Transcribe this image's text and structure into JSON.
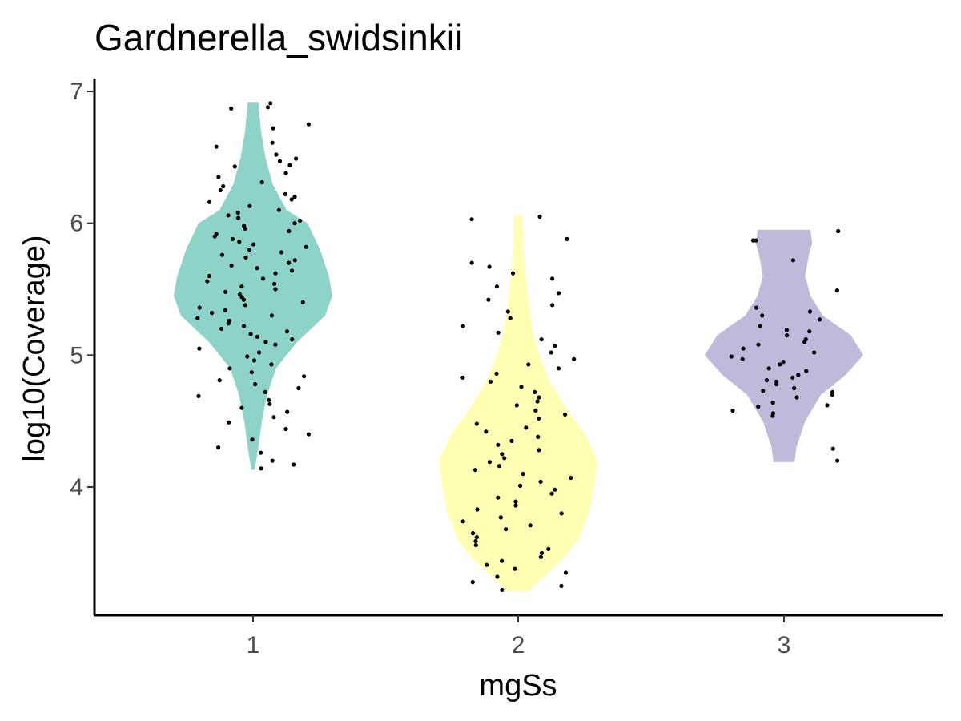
{
  "chart_data": {
    "type": "violin",
    "title": "Gardnerella_swidsinkii",
    "xlabel": "mgSs",
    "ylabel": "log10(Coverage)",
    "categories": [
      "1",
      "2",
      "3"
    ],
    "yticks": [
      4,
      5,
      6,
      7
    ],
    "ylim": [
      3.1,
      7.1
    ],
    "grid": false,
    "legend": "none",
    "violins": [
      {
        "category": "1",
        "color": "#8dd3c7",
        "min": 4.13,
        "max": 6.92,
        "density": [
          [
            4.13,
            0.02
          ],
          [
            4.3,
            0.06
          ],
          [
            4.5,
            0.1
          ],
          [
            4.7,
            0.16
          ],
          [
            4.9,
            0.26
          ],
          [
            5.1,
            0.5
          ],
          [
            5.3,
            0.82
          ],
          [
            5.45,
            0.9
          ],
          [
            5.6,
            0.86
          ],
          [
            5.8,
            0.76
          ],
          [
            6.0,
            0.62
          ],
          [
            6.1,
            0.38
          ],
          [
            6.3,
            0.22
          ],
          [
            6.5,
            0.14
          ],
          [
            6.7,
            0.09
          ],
          [
            6.92,
            0.06
          ]
        ]
      },
      {
        "category": "2",
        "color": "#ffffb3",
        "min": 3.21,
        "max": 6.06,
        "density": [
          [
            3.21,
            0.12
          ],
          [
            3.3,
            0.26
          ],
          [
            3.45,
            0.5
          ],
          [
            3.6,
            0.68
          ],
          [
            3.8,
            0.8
          ],
          [
            4.0,
            0.86
          ],
          [
            4.2,
            0.9
          ],
          [
            4.4,
            0.76
          ],
          [
            4.6,
            0.54
          ],
          [
            4.8,
            0.36
          ],
          [
            5.0,
            0.24
          ],
          [
            5.2,
            0.16
          ],
          [
            5.5,
            0.1
          ],
          [
            5.8,
            0.06
          ],
          [
            6.06,
            0.05
          ]
        ]
      },
      {
        "category": "3",
        "color": "#bebada",
        "min": 4.19,
        "max": 5.95,
        "density": [
          [
            4.19,
            0.12
          ],
          [
            4.3,
            0.14
          ],
          [
            4.5,
            0.24
          ],
          [
            4.7,
            0.42
          ],
          [
            4.85,
            0.7
          ],
          [
            5.0,
            0.9
          ],
          [
            5.15,
            0.76
          ],
          [
            5.3,
            0.44
          ],
          [
            5.45,
            0.3
          ],
          [
            5.6,
            0.24
          ],
          [
            5.75,
            0.28
          ],
          [
            5.85,
            0.32
          ],
          [
            5.95,
            0.3
          ]
        ]
      }
    ],
    "points": [
      {
        "category": "1",
        "y": [
          6.91,
          6.87,
          6.88,
          6.75,
          6.72,
          6.61,
          6.58,
          6.49,
          6.52,
          6.44,
          6.47,
          6.43,
          6.38,
          6.35,
          6.31,
          6.28,
          6.25,
          6.22,
          6.2,
          6.18,
          6.16,
          6.13,
          6.1,
          6.08,
          6.06,
          6.04,
          6.02,
          6.0,
          5.98,
          5.96,
          5.94,
          5.92,
          5.9,
          5.88,
          5.86,
          5.84,
          5.82,
          5.8,
          5.78,
          5.76,
          5.74,
          5.72,
          5.7,
          5.68,
          5.66,
          5.64,
          5.62,
          5.6,
          5.58,
          5.56,
          5.54,
          5.52,
          5.5,
          5.48,
          5.46,
          5.44,
          5.42,
          5.4,
          5.38,
          5.36,
          5.34,
          5.32,
          5.3,
          5.28,
          5.26,
          5.24,
          5.22,
          5.2,
          5.18,
          5.16,
          5.14,
          5.12,
          5.1,
          5.08,
          5.05,
          5.02,
          4.99,
          4.96,
          4.93,
          4.9,
          4.87,
          4.84,
          4.81,
          4.78,
          4.75,
          4.72,
          4.69,
          4.66,
          4.63,
          4.6,
          4.57,
          4.53,
          4.49,
          4.44,
          4.4,
          4.36,
          4.3,
          4.26,
          4.2,
          4.17,
          4.14
        ]
      },
      {
        "category": "2",
        "y": [
          6.05,
          6.03,
          5.88,
          5.7,
          5.67,
          5.62,
          5.58,
          5.52,
          5.47,
          5.42,
          5.38,
          5.33,
          5.28,
          5.22,
          5.17,
          5.12,
          5.07,
          5.02,
          4.97,
          4.93,
          4.9,
          4.86,
          4.83,
          4.8,
          4.76,
          4.72,
          4.68,
          4.65,
          4.62,
          4.58,
          4.55,
          4.52,
          4.48,
          4.45,
          4.42,
          4.38,
          4.35,
          4.32,
          4.28,
          4.25,
          4.22,
          4.19,
          4.16,
          4.13,
          4.1,
          4.07,
          4.04,
          4.01,
          3.98,
          3.95,
          3.92,
          3.89,
          3.86,
          3.83,
          3.8,
          3.77,
          3.74,
          3.71,
          3.68,
          3.65,
          3.62,
          3.59,
          3.56,
          3.53,
          3.5,
          3.47,
          3.44,
          3.41,
          3.38,
          3.35,
          3.32,
          3.28,
          3.25,
          3.22
        ]
      },
      {
        "category": "3",
        "y": [
          5.94,
          5.87,
          5.87,
          5.72,
          5.49,
          5.36,
          5.33,
          5.3,
          5.27,
          5.22,
          5.19,
          5.18,
          5.15,
          5.12,
          5.1,
          5.08,
          5.05,
          5.02,
          4.99,
          4.97,
          4.95,
          4.93,
          4.9,
          4.88,
          4.85,
          4.83,
          4.81,
          4.8,
          4.78,
          4.75,
          4.73,
          4.72,
          4.7,
          4.68,
          4.64,
          4.62,
          4.61,
          4.58,
          4.56,
          4.54,
          4.29,
          4.2
        ]
      }
    ]
  }
}
